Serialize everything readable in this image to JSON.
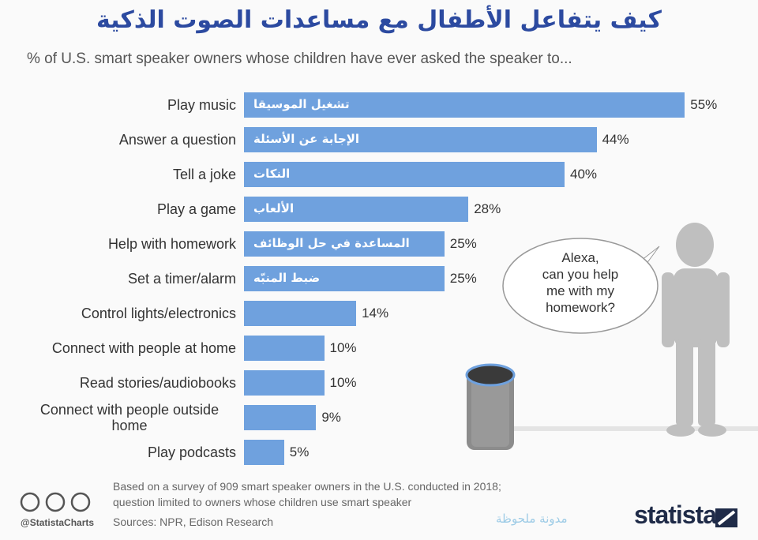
{
  "chart_data": {
    "type": "bar",
    "orientation": "horizontal",
    "title": "كيف يتفاعل الأطفال مع مساعدات الصوت الذكية",
    "subtitle": "% of U.S. smart speaker owners whose children have ever asked the speaker to...",
    "categories": [
      "Play music",
      "Answer a question",
      "Tell a joke",
      "Play a game",
      "Help with homework",
      "Set a timer/alarm",
      "Control lights/electronics",
      "Connect with people at home",
      "Read stories/audiobooks",
      "Connect with people outside home",
      "Play podcasts"
    ],
    "values": [
      55,
      44,
      40,
      28,
      25,
      25,
      14,
      10,
      10,
      9,
      5
    ],
    "value_labels": [
      "55%",
      "44%",
      "40%",
      "28%",
      "25%",
      "25%",
      "14%",
      "10%",
      "10%",
      "9%",
      "5%"
    ],
    "inner_labels": [
      "تشغيل الموسيقا",
      "الإجابة عن الأسئلة",
      "النكات",
      "الألعاب",
      "المساعدة في حل الوظائف",
      "ضبط المنبّه",
      null,
      null,
      null,
      null,
      null
    ],
    "color": "#6fa1de",
    "bubble_lines": [
      "Alexa,",
      "can you help",
      "me with my",
      "homework?"
    ],
    "notes": [
      "Based on a survey of 909 smart speaker owners in the U.S. conducted in 2018;",
      "question limited to owners whose children use smart speaker"
    ],
    "sources": "Sources: NPR, Edison Research",
    "handle": "@StatistaCharts",
    "brand": "statista",
    "watermark": "مدونة ملحوظة"
  }
}
